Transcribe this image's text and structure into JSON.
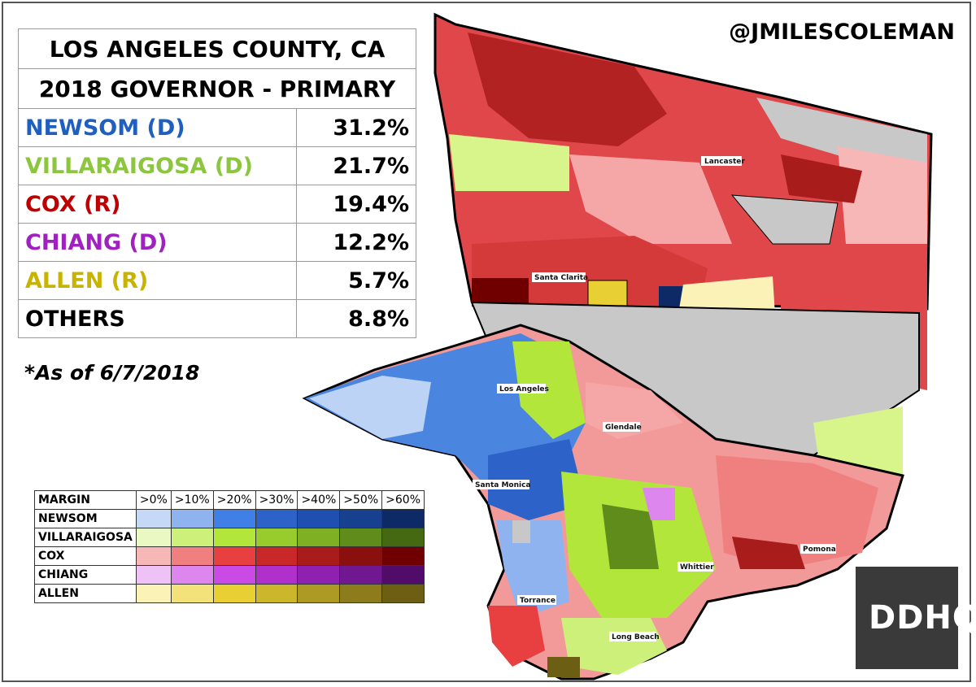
{
  "handle": "@JMILESCOLEMAN",
  "results": {
    "title1": "LOS ANGELES COUNTY, CA",
    "title2": "2018 GOVERNOR - PRIMARY",
    "rows": [
      {
        "name": "NEWSOM (D)",
        "pct": "31.2%",
        "color": "#1f5fbf"
      },
      {
        "name": "VILLARAIGOSA (D)",
        "pct": "21.7%",
        "color": "#8cc63f"
      },
      {
        "name": "COX (R)",
        "pct": "19.4%",
        "color": "#c00000"
      },
      {
        "name": "CHIANG (D)",
        "pct": "12.2%",
        "color": "#a020c0"
      },
      {
        "name": "ALLEN (R)",
        "pct": "5.7%",
        "color": "#c8b400"
      },
      {
        "name": "OTHERS",
        "pct": "8.8%",
        "color": "#000000"
      }
    ]
  },
  "as_of": "*As of 6/7/2018",
  "legend": {
    "header": "MARGIN",
    "levels": [
      ">0%",
      ">10%",
      ">20%",
      ">30%",
      ">40%",
      ">50%",
      ">60%"
    ],
    "rows": [
      {
        "name": "NEWSOM",
        "colors": [
          "#c5d8f5",
          "#8fb3ee",
          "#3f7fe6",
          "#2d63c8",
          "#1f4fb0",
          "#17408f",
          "#0d2a66"
        ]
      },
      {
        "name": "VILLARAIGOSA",
        "colors": [
          "#eaf8c4",
          "#cdf07a",
          "#b2e63a",
          "#97cc2c",
          "#7fb024",
          "#5f8c1a",
          "#456812"
        ]
      },
      {
        "name": "COX",
        "colors": [
          "#f7b7b7",
          "#f08080",
          "#e84040",
          "#c82828",
          "#a81c1c",
          "#8a1010",
          "#700000"
        ]
      },
      {
        "name": "CHIANG",
        "colors": [
          "#efc2f7",
          "#dc86ee",
          "#c94ae4",
          "#b030cc",
          "#9020b0",
          "#701890",
          "#500c68"
        ]
      },
      {
        "name": "ALLEN",
        "colors": [
          "#fbf2b8",
          "#f3e27a",
          "#e8d034",
          "#cbb62c",
          "#ac9a24",
          "#8c7c1c",
          "#6c5e12"
        ]
      }
    ]
  },
  "cities": [
    "Lancaster",
    "Santa Clarita",
    "Los Angeles",
    "Glendale",
    "Santa Monica",
    "Whittier",
    "Pomona",
    "Torrance",
    "Long Beach"
  ],
  "logo": "DDHQ"
}
